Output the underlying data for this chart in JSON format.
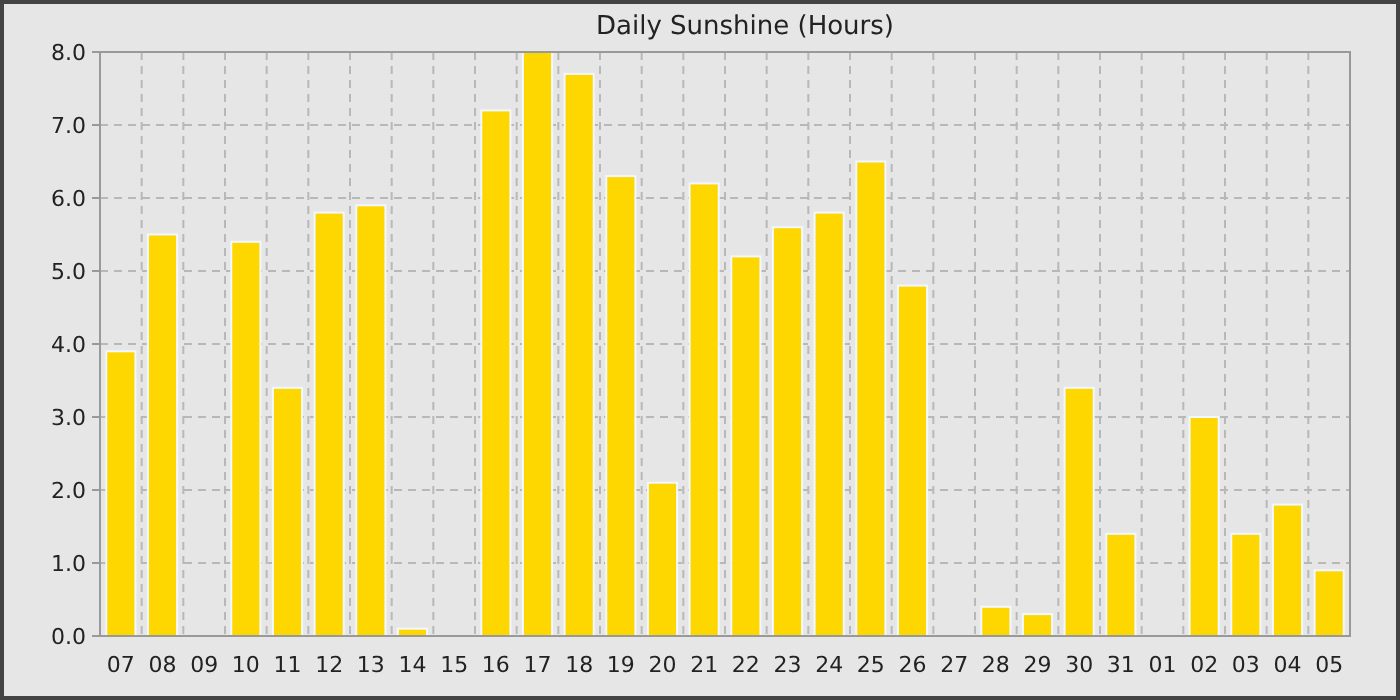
{
  "chart_data": {
    "type": "bar",
    "title": "Daily Sunshine (Hours)",
    "categories": [
      "07",
      "08",
      "09",
      "10",
      "11",
      "12",
      "13",
      "14",
      "15",
      "16",
      "17",
      "18",
      "19",
      "20",
      "21",
      "22",
      "23",
      "24",
      "25",
      "26",
      "27",
      "28",
      "29",
      "30",
      "31",
      "01",
      "02",
      "03",
      "04",
      "05"
    ],
    "values": [
      3.9,
      5.5,
      0,
      5.4,
      3.4,
      5.8,
      5.9,
      0.1,
      0,
      7.2,
      8.0,
      7.7,
      6.3,
      2.1,
      6.2,
      5.2,
      5.6,
      5.8,
      6.5,
      4.8,
      0,
      0.4,
      0.3,
      3.4,
      1.4,
      0,
      3.0,
      1.4,
      1.8,
      0.9
    ],
    "color": "#ffd700",
    "ylim": [
      0,
      8
    ],
    "yticks": [
      {
        "value": 0,
        "label": "0.0"
      },
      {
        "value": 1,
        "label": "1.0"
      },
      {
        "value": 2,
        "label": "2.0"
      },
      {
        "value": 3,
        "label": "3.0"
      },
      {
        "value": 4,
        "label": "4.0"
      },
      {
        "value": 5,
        "label": "5.0"
      },
      {
        "value": 6,
        "label": "6.0"
      },
      {
        "value": 7,
        "label": "7.0"
      },
      {
        "value": 8,
        "label": "8.0"
      }
    ],
    "grid": true
  }
}
